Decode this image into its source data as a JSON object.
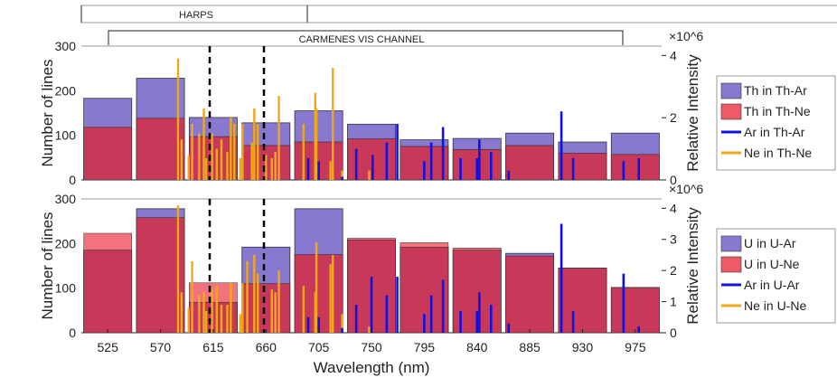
{
  "instrument_bands": {
    "harps": "HARPS",
    "carmenes": "CARMENES VIS CHANNEL"
  },
  "colors": {
    "th_bar": "#8878d0",
    "ne_bar": "#f05a66",
    "overlap_bar": "#c83858",
    "ar_line": "#1010e0",
    "ne_line": "#f0a818"
  },
  "chart_data": [
    {
      "type": "bar",
      "name": "thorium-panel",
      "xlabel": "",
      "ylabel": "Number of lines",
      "ylabel_right": "Relative Intensity",
      "right_multiplier": "×10^6",
      "xlim": [
        502.5,
        997.5
      ],
      "ylim": [
        0,
        300
      ],
      "ylim_right": [
        0,
        4.3
      ],
      "yticks": [
        0,
        100,
        200,
        300
      ],
      "yticks_right": [
        0,
        2,
        4
      ],
      "categories": [
        525,
        570,
        615,
        660,
        705,
        750,
        795,
        840,
        885,
        930,
        975
      ],
      "series": [
        {
          "name": "Th in Th-Ar",
          "values": [
            183,
            228,
            140,
            128,
            155,
            125,
            90,
            93,
            105,
            85,
            105
          ]
        },
        {
          "name": "Th in Th-Ne",
          "values": [
            118,
            138,
            97,
            77,
            85,
            92,
            75,
            68,
            77,
            60,
            57
          ]
        }
      ],
      "lines": [
        {
          "name": "Ar in Th-Ar",
          "points": [
            [
              696,
              0.7
            ],
            [
              705,
              0.6
            ],
            [
              725,
              0.1
            ],
            [
              737,
              1.0
            ],
            [
              751,
              0.8
            ],
            [
              763,
              1.2
            ],
            [
              772,
              1.8
            ],
            [
              795,
              0.6
            ],
            [
              801,
              1.2
            ],
            [
              811,
              1.7
            ],
            [
              826,
              0.7
            ],
            [
              840,
              0.7
            ],
            [
              842,
              1.3
            ],
            [
              852,
              0.9
            ],
            [
              867,
              0.3
            ],
            [
              912,
              2.2
            ],
            [
              922,
              0.7
            ],
            [
              965,
              0.6
            ],
            [
              978,
              0.7
            ]
          ]
        },
        {
          "name": "Ne in Th-Ne",
          "points": [
            [
              585,
              3.9
            ],
            [
              588,
              1.3
            ],
            [
              594,
              0.8
            ],
            [
              597,
              1.8
            ],
            [
              603,
              1.5
            ],
            [
              607,
              2.3
            ],
            [
              609,
              0.7
            ],
            [
              614,
              1.5
            ],
            [
              618,
              1.0
            ],
            [
              622,
              1.3
            ],
            [
              627,
              0.9
            ],
            [
              630,
              2.0
            ],
            [
              633,
              1.8
            ],
            [
              638,
              0.7
            ],
            [
              640,
              1.8
            ],
            [
              648,
              1.2
            ],
            [
              650,
              2.3
            ],
            [
              653,
              1.8
            ],
            [
              660,
              0.8
            ],
            [
              665,
              0.7
            ],
            [
              668,
              0.9
            ],
            [
              671,
              2.7
            ],
            [
              692,
              1.8
            ],
            [
              702,
              2.8
            ],
            [
              703,
              2.3
            ],
            [
              715,
              0.6
            ],
            [
              717,
              3.6
            ],
            [
              725,
              0.3
            ],
            [
              748,
              0.3
            ]
          ]
        }
      ],
      "legend": [
        "Th in Th-Ar",
        "Th in Th-Ne",
        "Ar in Th-Ar",
        "Ne in Th-Ne"
      ],
      "legend_position": "outside-right"
    },
    {
      "type": "bar",
      "name": "uranium-panel",
      "xlabel": "Wavelength (nm)",
      "ylabel": "Number of lines",
      "ylabel_right": "Relative Intensity",
      "right_multiplier": "×10^6",
      "xlim": [
        502.5,
        997.5
      ],
      "ylim": [
        0,
        300
      ],
      "ylim_right": [
        0,
        4.3
      ],
      "yticks": [
        0,
        100,
        200,
        300
      ],
      "yticks_right": [
        0,
        1,
        2,
        3,
        4
      ],
      "categories": [
        525,
        570,
        615,
        660,
        705,
        750,
        795,
        840,
        885,
        930,
        975
      ],
      "series": [
        {
          "name": "U in U-Ar",
          "values": [
            185,
            278,
            68,
            192,
            278,
            208,
            192,
            185,
            178,
            145,
            100
          ]
        },
        {
          "name": "U in U-Ne",
          "values": [
            223,
            258,
            112,
            110,
            175,
            212,
            202,
            190,
            172,
            145,
            102
          ]
        }
      ],
      "lines": [
        {
          "name": "Ar in U-Ar",
          "points": [
            [
              696,
              0.5
            ],
            [
              705,
              0.5
            ],
            [
              725,
              0.15
            ],
            [
              737,
              0.9
            ],
            [
              750,
              1.8
            ],
            [
              763,
              1.2
            ],
            [
              772,
              1.8
            ],
            [
              795,
              0.6
            ],
            [
              801,
              1.2
            ],
            [
              811,
              1.7
            ],
            [
              826,
              0.7
            ],
            [
              840,
              0.7
            ],
            [
              842,
              1.3
            ],
            [
              852,
              0.9
            ],
            [
              867,
              0.3
            ],
            [
              912,
              3.5
            ],
            [
              922,
              0.7
            ],
            [
              965,
              1.9
            ],
            [
              978,
              0.2
            ]
          ]
        },
        {
          "name": "Ne in U-Ne",
          "points": [
            [
              585,
              4.1
            ],
            [
              588,
              1.3
            ],
            [
              594,
              0.8
            ],
            [
              597,
              2.3
            ],
            [
              603,
              1.2
            ],
            [
              607,
              1.3
            ],
            [
              609,
              0.7
            ],
            [
              614,
              1.4
            ],
            [
              618,
              1.5
            ],
            [
              622,
              0.9
            ],
            [
              627,
              0.9
            ],
            [
              630,
              1.6
            ],
            [
              638,
              0.6
            ],
            [
              640,
              1.6
            ],
            [
              644,
              2.3
            ],
            [
              650,
              2.5
            ],
            [
              653,
              1.9
            ],
            [
              665,
              1.4
            ],
            [
              668,
              1.3
            ],
            [
              671,
              2.0
            ],
            [
              692,
              1.5
            ],
            [
              702,
              1.3
            ],
            [
              703,
              2.9
            ],
            [
              715,
              2.2
            ],
            [
              717,
              2.5
            ],
            [
              725,
              0.6
            ],
            [
              748,
              0.2
            ]
          ]
        }
      ],
      "legend": [
        "U in U-Ar",
        "U in U-Ne",
        "Ar in U-Ar",
        "Ne in U-Ne"
      ],
      "legend_position": "outside-right"
    }
  ]
}
